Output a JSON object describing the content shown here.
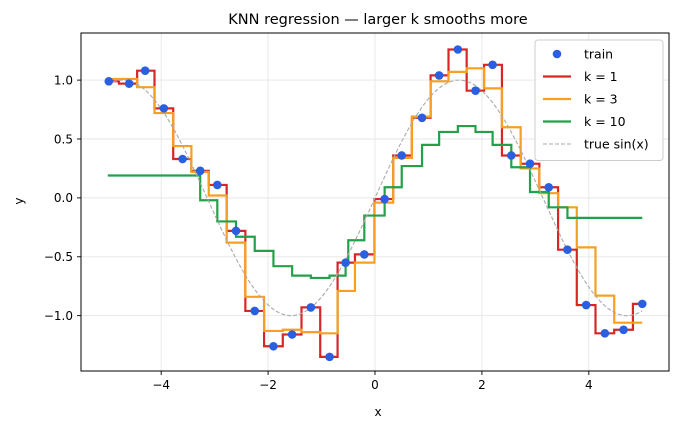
{
  "chart_data": {
    "type": "line",
    "title": "KNN regression — larger k smooths more",
    "xlabel": "x",
    "ylabel": "y",
    "xlim": [
      -5.5,
      5.5
    ],
    "ylim": [
      -1.47,
      1.4
    ],
    "xticks": [
      -4,
      -2,
      0,
      2,
      4
    ],
    "xtick_labels": [
      "−4",
      "−2",
      "0",
      "2",
      "4"
    ],
    "yticks": [
      -1.0,
      -0.5,
      0.0,
      0.5,
      1.0
    ],
    "ytick_labels": [
      "−1.0",
      "−0.5",
      "0.0",
      "0.5",
      "1.0"
    ],
    "grid": true,
    "legend_position": "top-right",
    "train": {
      "name": "train",
      "color": "#2a5fe0",
      "x": [
        -4.98,
        -4.6,
        -4.3,
        -3.95,
        -3.6,
        -3.27,
        -2.95,
        -2.6,
        -2.25,
        -1.9,
        -1.55,
        -1.2,
        -0.85,
        -0.55,
        -0.2,
        0.18,
        0.5,
        0.88,
        1.2,
        1.55,
        1.88,
        2.2,
        2.55,
        2.9,
        3.25,
        3.6,
        3.95,
        4.3,
        4.65,
        5.0
      ],
      "y": [
        0.99,
        0.97,
        1.08,
        0.76,
        0.33,
        0.23,
        0.11,
        -0.28,
        -0.96,
        -1.26,
        -1.16,
        -0.93,
        -1.35,
        -0.55,
        -0.48,
        -0.01,
        0.36,
        0.68,
        1.04,
        1.26,
        0.91,
        1.13,
        0.36,
        0.29,
        0.09,
        -0.44,
        -0.91,
        -1.15,
        -1.12,
        -0.9
      ]
    },
    "series": [
      {
        "name": "k = 1",
        "color": "#d62728",
        "steps": [
          [
            -5.0,
            0.99
          ],
          [
            -4.79,
            0.97
          ],
          [
            -4.45,
            1.08
          ],
          [
            -4.125,
            0.76
          ],
          [
            -3.775,
            0.33
          ],
          [
            -3.435,
            0.23
          ],
          [
            -3.11,
            0.11
          ],
          [
            -2.775,
            -0.28
          ],
          [
            -2.425,
            -0.96
          ],
          [
            -2.075,
            -1.26
          ],
          [
            -1.725,
            -1.16
          ],
          [
            -1.375,
            -0.93
          ],
          [
            -1.025,
            -1.35
          ],
          [
            -0.7,
            -0.55
          ],
          [
            -0.375,
            -0.48
          ],
          [
            -0.01,
            -0.01
          ],
          [
            0.34,
            0.36
          ],
          [
            0.69,
            0.68
          ],
          [
            1.04,
            1.04
          ],
          [
            1.375,
            1.26
          ],
          [
            1.715,
            0.91
          ],
          [
            2.04,
            1.13
          ],
          [
            2.375,
            0.36
          ],
          [
            2.725,
            0.29
          ],
          [
            3.075,
            0.09
          ],
          [
            3.425,
            -0.44
          ],
          [
            3.775,
            -0.91
          ],
          [
            4.125,
            -1.15
          ],
          [
            4.475,
            -1.12
          ],
          [
            4.825,
            -0.9
          ],
          [
            5.0,
            -0.9
          ]
        ]
      },
      {
        "name": "k = 3",
        "color": "#f5a020",
        "steps": [
          [
            -5.0,
            1.01
          ],
          [
            -4.45,
            0.94
          ],
          [
            -4.125,
            0.72
          ],
          [
            -3.775,
            0.44
          ],
          [
            -3.435,
            0.22
          ],
          [
            -3.11,
            0.02
          ],
          [
            -2.775,
            -0.38
          ],
          [
            -2.425,
            -0.84
          ],
          [
            -2.075,
            -1.13
          ],
          [
            -1.725,
            -1.12
          ],
          [
            -1.375,
            -1.14
          ],
          [
            -1.025,
            -1.15
          ],
          [
            -0.7,
            -0.79
          ],
          [
            -0.375,
            -0.55
          ],
          [
            -0.01,
            -0.04
          ],
          [
            0.34,
            0.34
          ],
          [
            0.69,
            0.69
          ],
          [
            1.04,
            0.99
          ],
          [
            1.375,
            1.07
          ],
          [
            1.715,
            1.1
          ],
          [
            2.04,
            0.93
          ],
          [
            2.375,
            0.6
          ],
          [
            2.725,
            0.25
          ],
          [
            3.075,
            0.04
          ],
          [
            3.425,
            -0.08
          ],
          [
            3.775,
            -0.42
          ],
          [
            4.125,
            -0.83
          ],
          [
            4.475,
            -1.06
          ],
          [
            5.0,
            -1.06
          ]
        ]
      },
      {
        "name": "k = 10",
        "color": "#22a14a",
        "steps": [
          [
            -5.0,
            0.19
          ],
          [
            -3.27,
            -0.02
          ],
          [
            -2.95,
            -0.2
          ],
          [
            -2.6,
            -0.33
          ],
          [
            -2.25,
            -0.45
          ],
          [
            -1.9,
            -0.58
          ],
          [
            -1.55,
            -0.66
          ],
          [
            -1.2,
            -0.68
          ],
          [
            -0.85,
            -0.66
          ],
          [
            -0.55,
            -0.55
          ],
          [
            -0.5,
            -0.36
          ],
          [
            -0.2,
            -0.15
          ],
          [
            0.18,
            0.09
          ],
          [
            0.5,
            0.27
          ],
          [
            0.88,
            0.45
          ],
          [
            1.2,
            0.56
          ],
          [
            1.55,
            0.61
          ],
          [
            1.88,
            0.56
          ],
          [
            2.2,
            0.45
          ],
          [
            2.55,
            0.26
          ],
          [
            2.9,
            0.05
          ],
          [
            3.25,
            -0.08
          ],
          [
            3.6,
            -0.17
          ],
          [
            5.0,
            -0.17
          ]
        ]
      },
      {
        "name": "true sin(x)",
        "color": "#aaaaaa",
        "dashed": true,
        "function": "sin",
        "x_range": [
          -5.0,
          5.0
        ]
      }
    ]
  }
}
